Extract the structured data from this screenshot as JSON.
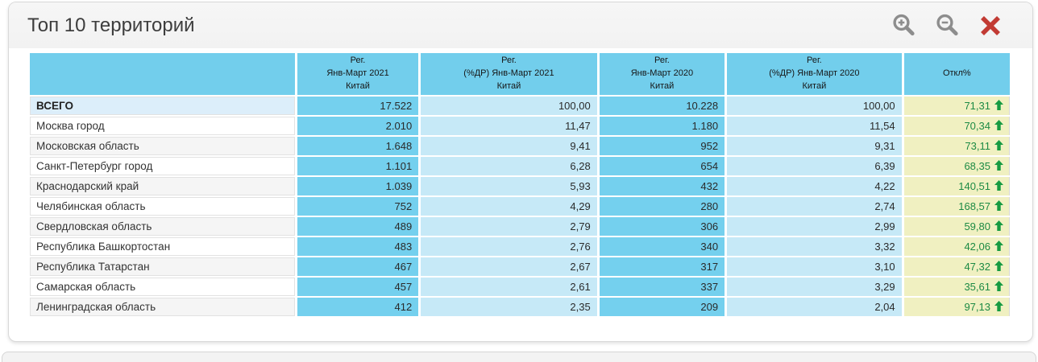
{
  "panel": {
    "title": "Топ 10 территорий",
    "toolbar": {
      "zoom_in_icon": "magnifier-plus",
      "zoom_out_icon": "magnifier-minus",
      "close_icon": "x-cross"
    }
  },
  "table": {
    "columns": [
      {
        "lines": []
      },
      {
        "lines": [
          "Рег.",
          "Янв-Март 2021",
          "Китай"
        ]
      },
      {
        "lines": [
          "Рег.",
          "(%ДР) Янв-Март 2021",
          "Китай"
        ]
      },
      {
        "lines": [
          "Рег.",
          "Янв-Март 2020",
          "Китай"
        ]
      },
      {
        "lines": [
          "Рег.",
          "(%ДР) Янв-Март 2020",
          "Китай"
        ]
      },
      {
        "lines": [
          "Откл%"
        ]
      }
    ],
    "rows": [
      {
        "name": "ВСЕГО",
        "reg_2021": "17.522",
        "share_2021": "100,00",
        "reg_2020": "10.228",
        "share_2020": "100,00",
        "deviation": "71,31",
        "trend": "up",
        "total": true
      },
      {
        "name": "Москва город",
        "reg_2021": "2.010",
        "share_2021": "11,47",
        "reg_2020": "1.180",
        "share_2020": "11,54",
        "deviation": "70,34",
        "trend": "up",
        "total": false
      },
      {
        "name": "Московская область",
        "reg_2021": "1.648",
        "share_2021": "9,41",
        "reg_2020": "952",
        "share_2020": "9,31",
        "deviation": "73,11",
        "trend": "up",
        "total": false
      },
      {
        "name": "Санкт-Петербург город",
        "reg_2021": "1.101",
        "share_2021": "6,28",
        "reg_2020": "654",
        "share_2020": "6,39",
        "deviation": "68,35",
        "trend": "up",
        "total": false
      },
      {
        "name": "Краснодарский край",
        "reg_2021": "1.039",
        "share_2021": "5,93",
        "reg_2020": "432",
        "share_2020": "4,22",
        "deviation": "140,51",
        "trend": "up",
        "total": false
      },
      {
        "name": "Челябинская область",
        "reg_2021": "752",
        "share_2021": "4,29",
        "reg_2020": "280",
        "share_2020": "2,74",
        "deviation": "168,57",
        "trend": "up",
        "total": false
      },
      {
        "name": "Свердловская область",
        "reg_2021": "489",
        "share_2021": "2,79",
        "reg_2020": "306",
        "share_2020": "2,99",
        "deviation": "59,80",
        "trend": "up",
        "total": false
      },
      {
        "name": "Республика Башкортостан",
        "reg_2021": "483",
        "share_2021": "2,76",
        "reg_2020": "340",
        "share_2020": "3,32",
        "deviation": "42,06",
        "trend": "up",
        "total": false
      },
      {
        "name": "Республика Татарстан",
        "reg_2021": "467",
        "share_2021": "2,67",
        "reg_2020": "317",
        "share_2020": "3,10",
        "deviation": "47,32",
        "trend": "up",
        "total": false
      },
      {
        "name": "Самарская область",
        "reg_2021": "457",
        "share_2021": "2,61",
        "reg_2020": "337",
        "share_2020": "3,29",
        "deviation": "35,61",
        "trend": "up",
        "total": false
      },
      {
        "name": "Ленинградская область",
        "reg_2021": "412",
        "share_2021": "2,35",
        "reg_2020": "209",
        "share_2020": "2,04",
        "deviation": "97,13",
        "trend": "up",
        "total": false
      }
    ]
  },
  "colors": {
    "header_blue": "#72CEEC",
    "value_blue": "#74D0EE",
    "share_blue": "#C6E9F7",
    "deviation_yellow": "#F0F0C1",
    "total_row_bg": "#DCEEFA",
    "stripe_gray": "#F5F5F5",
    "positive_green": "#1C8A44",
    "arrow_green": "#169B42",
    "close_red": "#C23B34",
    "icon_gray": "#8D8D8D"
  }
}
